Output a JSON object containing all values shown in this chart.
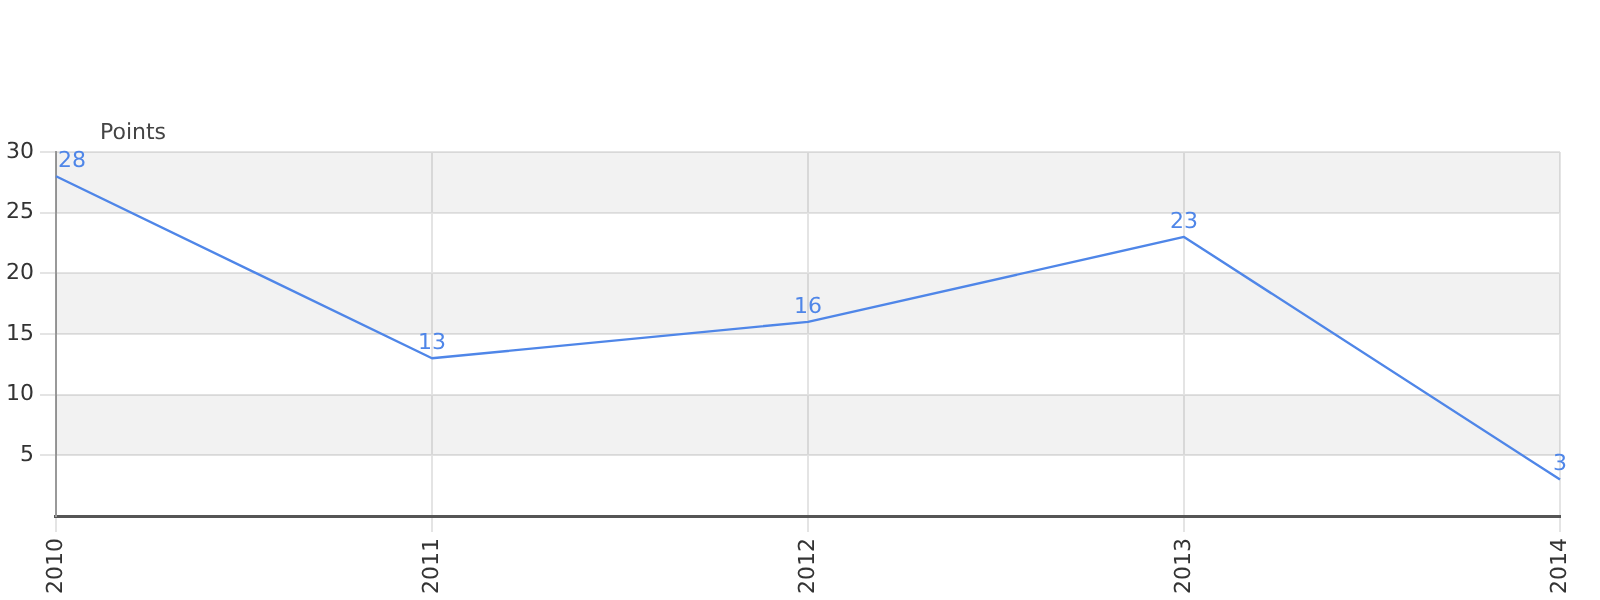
{
  "chart_data": {
    "type": "line",
    "ylabel": "Points",
    "categories": [
      "2010",
      "2011",
      "2012",
      "2013",
      "2014"
    ],
    "series": [
      {
        "color": "#4f86e8",
        "values": [
          28,
          13,
          16,
          23,
          3
        ]
      }
    ],
    "ylim": [
      0,
      30
    ],
    "yticks": [
      5,
      10,
      15,
      20,
      25,
      30
    ],
    "grid": true,
    "data_labels": true,
    "legend": false,
    "marker": "none",
    "line_style": "solid"
  }
}
